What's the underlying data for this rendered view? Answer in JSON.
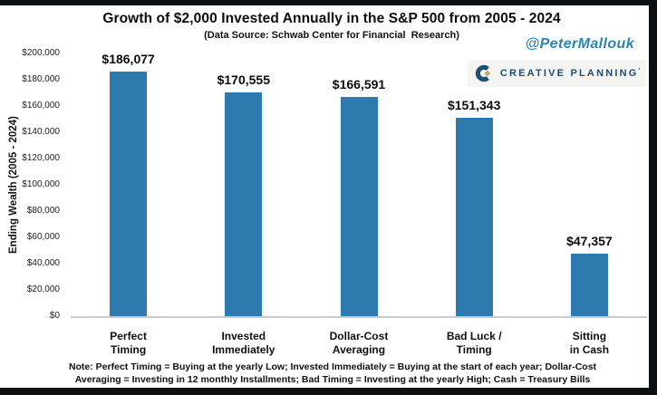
{
  "header": {
    "handle": "@PeterMallouk",
    "handle_color": "#2C85B1"
  },
  "branding": {
    "logo_text": "CREATIVE PLANNING",
    "logo_tm": "’",
    "icon": "creative-planning-c-icon",
    "navy": "#1D4F74",
    "gold": "#C2A264"
  },
  "chart_data": {
    "type": "bar",
    "title": "Growth of $2,000 Invested Annually in the S&P 500 from 2005 - 2024",
    "subtitle": "(Data Source: Schwab Center for Financial  Research)",
    "categories": [
      "Perfect Timing",
      "Invested Immediately",
      "Dollar-Cost Averaging",
      "Bad Luck / Timing",
      "Sitting in Cash"
    ],
    "category_lines": [
      [
        "Perfect",
        "Timing"
      ],
      [
        "Invested",
        "Immediately"
      ],
      [
        "Dollar-Cost",
        "Averaging"
      ],
      [
        "Bad Luck /",
        "Timing"
      ],
      [
        "Sitting",
        "in Cash"
      ]
    ],
    "values": [
      186077,
      170555,
      166591,
      151343,
      47357
    ],
    "value_labels": [
      "$186,077",
      "$170,555",
      "$166,591",
      "$151,343",
      "$47,357"
    ],
    "ylabel": "Ending Wealth (2005 - 2024)",
    "xlabel": "",
    "ylim": [
      0,
      200000
    ],
    "ytick_interval": 20000,
    "ytick_labels": [
      "$200,000",
      "$180,000",
      "$160,000",
      "$140,000",
      "$120,000",
      "$100,000",
      "$80,000",
      "$60,000",
      "$40,000",
      "$20,000",
      "$0"
    ],
    "grid": false,
    "legend_position": "none",
    "bar_color": "#2E7AAE",
    "axis_line_color": "#C8CACC"
  },
  "footnote": {
    "line1": "Note: Perfect Timing = Buying at the yearly Low; Invested Immediately = Buying at the start of each year; Dollar-Cost",
    "line2": "Averaging = Investing in 12 monthly Installments; Bad Timing = Investing at the yearly High; Cash = Treasury Bills"
  }
}
